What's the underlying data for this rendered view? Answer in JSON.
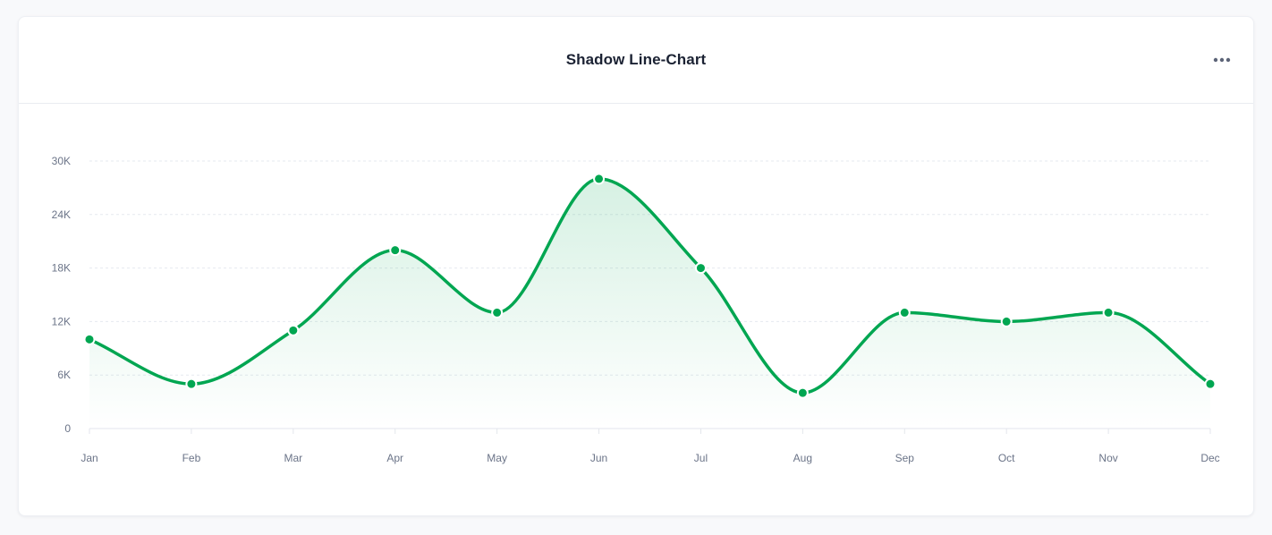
{
  "card": {
    "title": "Shadow Line-Chart"
  },
  "icons": {
    "more": "more-horizontal-icon"
  },
  "colors": {
    "line": "#00a651",
    "area_top": "#00a651",
    "grid": "#e6e9ef",
    "tick_text": "#6b7488"
  },
  "chart_data": {
    "type": "line",
    "title": "Shadow Line-Chart",
    "xlabel": "",
    "ylabel": "",
    "categories": [
      "Jan",
      "Feb",
      "Mar",
      "Apr",
      "May",
      "Jun",
      "Jul",
      "Aug",
      "Sep",
      "Oct",
      "Nov",
      "Dec"
    ],
    "series": [
      {
        "values": [
          10000,
          5000,
          11000,
          20000,
          13000,
          28000,
          18000,
          4000,
          13000,
          12000,
          13000,
          5000
        ]
      }
    ],
    "ylim": [
      0,
      30000
    ],
    "y_ticks": [
      "0",
      "6K",
      "12K",
      "18K",
      "24K",
      "30K"
    ],
    "y_tick_values": [
      0,
      6000,
      12000,
      18000,
      24000,
      30000
    ],
    "grid": true,
    "smooth": true,
    "area_fill": true,
    "markers": true
  }
}
